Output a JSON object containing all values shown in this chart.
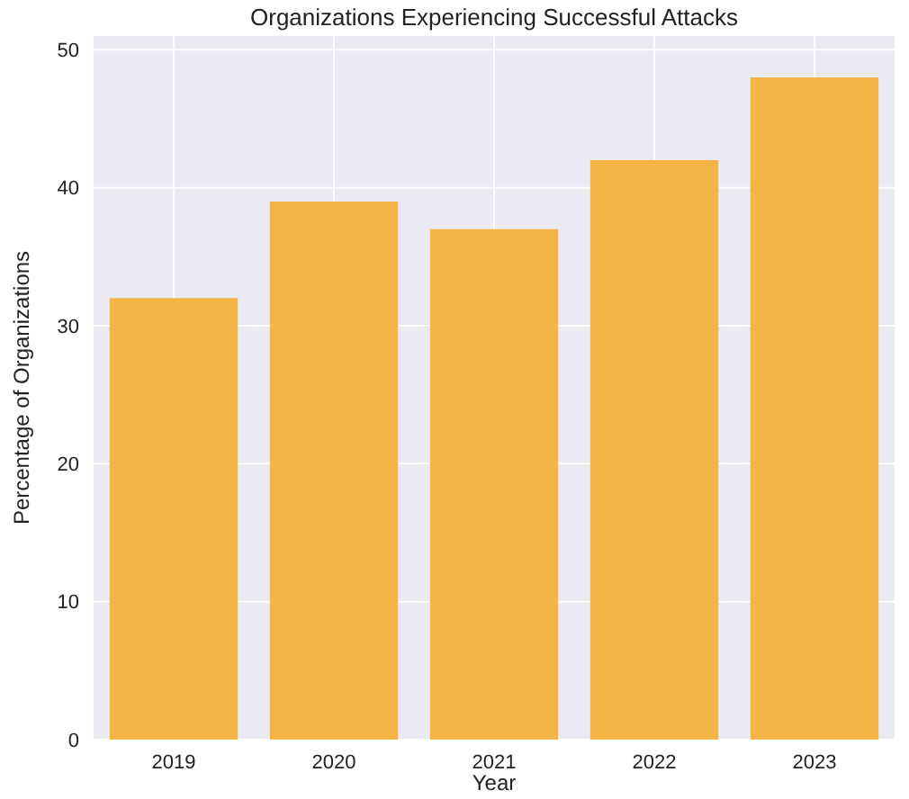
{
  "chart_data": {
    "type": "bar",
    "title": "Organizations Experiencing Successful Attacks",
    "xlabel": "Year",
    "ylabel": "Percentage of Organizations",
    "categories": [
      "2019",
      "2020",
      "2021",
      "2022",
      "2023"
    ],
    "values": [
      32,
      39,
      37,
      42,
      48
    ],
    "color": "#f5b546",
    "ylim": [
      0,
      51
    ],
    "yticks": [
      0,
      10,
      20,
      30,
      40,
      50
    ],
    "grid": true
  }
}
